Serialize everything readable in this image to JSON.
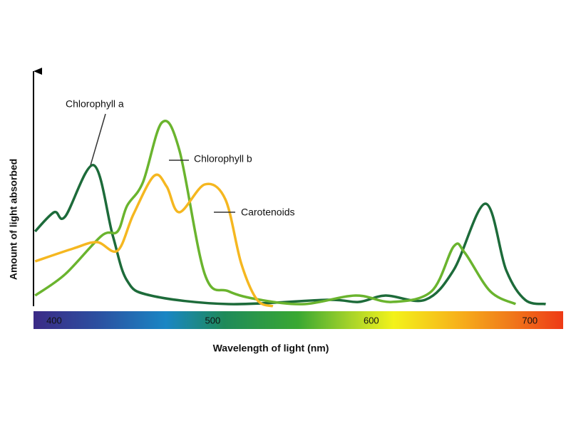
{
  "chart_data": {
    "type": "line",
    "x_label": "Wavelength of light (nm)",
    "y_label": "Amount of light absorbed",
    "xlim": [
      387,
      721
    ],
    "xticks": [
      400,
      500,
      600,
      700
    ],
    "ylim": [
      0,
      100
    ],
    "series": [
      {
        "name": "Chlorophyll a",
        "color": "#1d6b3a",
        "x": [
          388,
          400,
          407,
          425,
          437,
          446,
          461,
          510,
          572,
          592,
          609,
          634,
          652,
          672,
          685,
          697,
          710
        ],
        "values": [
          35,
          44,
          42,
          66,
          33,
          12,
          5,
          1,
          3,
          2,
          5,
          3,
          17,
          48,
          17,
          3,
          1
        ]
      },
      {
        "name": "Chlorophyll b",
        "color": "#6ab42e",
        "x": [
          388,
          407,
          430,
          440,
          446,
          456,
          468,
          479,
          495,
          510,
          530,
          558,
          590,
          613,
          638,
          652,
          659,
          675,
          691
        ],
        "values": [
          5,
          15,
          33,
          35,
          47,
          58,
          86,
          73,
          15,
          7,
          3,
          1,
          5,
          2,
          7,
          28,
          25,
          7,
          1
        ]
      },
      {
        "name": "Carotenoids",
        "color": "#f5b720",
        "x": [
          388,
          412,
          427,
          440,
          450,
          463,
          471,
          479,
          495,
          508,
          518,
          528,
          538
        ],
        "values": [
          21,
          27,
          30,
          26,
          43,
          61,
          56,
          44,
          57,
          50,
          20,
          3,
          0
        ]
      }
    ]
  }
}
